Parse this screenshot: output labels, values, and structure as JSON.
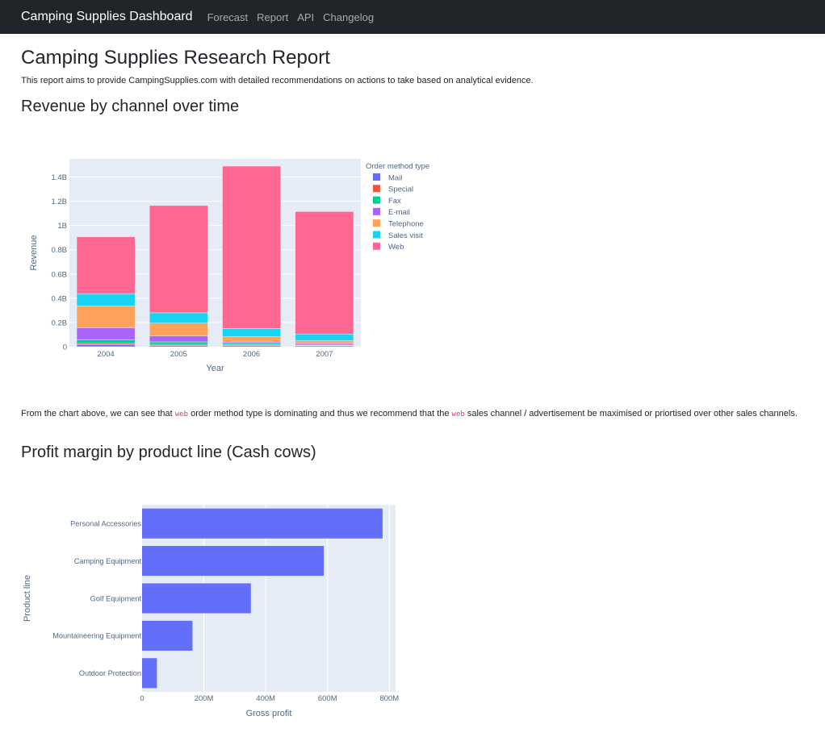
{
  "navbar": {
    "brand": "Camping Supplies Dashboard",
    "links": [
      "Forecast",
      "Report",
      "API",
      "Changelog"
    ]
  },
  "page": {
    "title": "Camping Supplies Research Report",
    "intro": "This report aims to provide CampingSupplies.com with detailed recommendations on actions to take based on analytical evidence."
  },
  "section1": {
    "heading": "Revenue by channel over time",
    "paragraph": {
      "part1": "From the chart above, we can see that ",
      "code1": "web",
      "part2": " order method type is dominating and thus we recommend that the ",
      "code2": "web",
      "part3": " sales channel / advertisement be maximised or priortised over other sales channels."
    }
  },
  "section2": {
    "heading": "Profit margin by product line (Cash cows)"
  },
  "colors": {
    "navbar_bg": "#212529",
    "plot_bg": "#e5ecf6",
    "highlight": "#d63384"
  },
  "chart_data": [
    {
      "type": "bar",
      "stacked": true,
      "title": "Revenue by channel over time",
      "xlabel": "Year",
      "ylabel": "Revenue",
      "categories": [
        "2004",
        "2005",
        "2006",
        "2007"
      ],
      "ylim": [
        0,
        1.55
      ],
      "yticks": [
        0,
        0.2,
        0.4,
        0.6,
        0.8,
        1,
        1.2,
        1.4
      ],
      "ytick_labels": [
        "0",
        "0.2B",
        "0.4B",
        "0.6B",
        "0.8B",
        "1B",
        "1.2B",
        "1.4B"
      ],
      "legend_title": "Order method type",
      "series": [
        {
          "name": "Mail",
          "color": "#636efa",
          "values": [
            0.015,
            0.01,
            0.01,
            0.008
          ]
        },
        {
          "name": "Special",
          "color": "#ef553b",
          "values": [
            0.012,
            0.01,
            0.006,
            0.004
          ]
        },
        {
          "name": "Fax",
          "color": "#00cc96",
          "values": [
            0.03,
            0.02,
            0.012,
            0.008
          ]
        },
        {
          "name": "E-mail",
          "color": "#ab63fa",
          "values": [
            0.1,
            0.05,
            0.012,
            0.01
          ]
        },
        {
          "name": "Telephone",
          "color": "#ffa15a",
          "values": [
            0.18,
            0.105,
            0.045,
            0.02
          ]
        },
        {
          "name": "Sales visit",
          "color": "#19d3f3",
          "values": [
            0.1,
            0.085,
            0.065,
            0.055
          ]
        },
        {
          "name": "Web",
          "color": "#ff6692",
          "values": [
            0.47,
            0.885,
            1.34,
            1.01
          ]
        }
      ]
    },
    {
      "type": "bar",
      "orientation": "horizontal",
      "title": "Profit margin by product line (Cash cows)",
      "xlabel": "Gross profit",
      "ylabel": "Product line",
      "categories": [
        "Personal Accessories",
        "Camping Equipment",
        "Golf Equipment",
        "Mountaineering Equipment",
        "Outdoor Protection"
      ],
      "values": [
        778,
        588,
        352,
        163,
        48
      ],
      "units": "M",
      "xlim": [
        0,
        820
      ],
      "xticks": [
        0,
        200,
        400,
        600,
        800
      ],
      "xtick_labels": [
        "0",
        "200M",
        "400M",
        "600M",
        "800M"
      ],
      "color": "#636efa"
    }
  ]
}
